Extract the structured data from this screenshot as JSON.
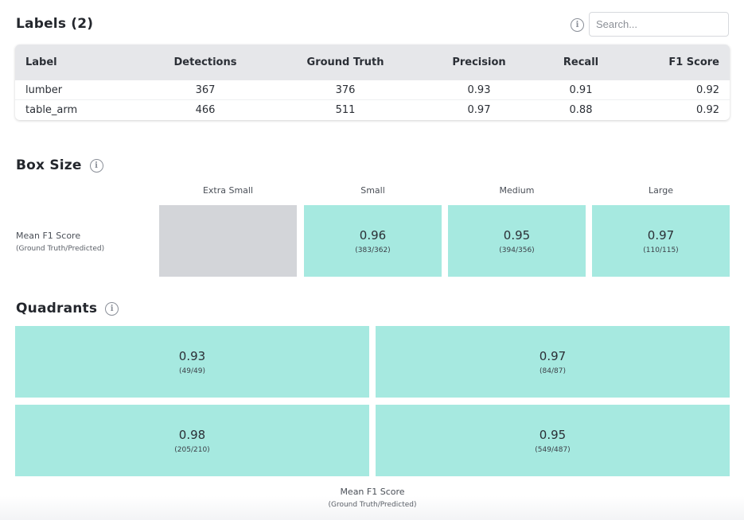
{
  "labels_section": {
    "title": "Labels (2)",
    "info_icon": "info-icon",
    "search": {
      "placeholder": "Search...",
      "value": ""
    },
    "columns": [
      "Label",
      "Detections",
      "Ground Truth",
      "Precision",
      "Recall",
      "F1 Score"
    ],
    "rows": [
      {
        "label": "lumber",
        "detections": "367",
        "ground_truth": "376",
        "precision": "0.93",
        "recall": "0.91",
        "f1": "0.92"
      },
      {
        "label": "table_arm",
        "detections": "466",
        "ground_truth": "511",
        "precision": "0.97",
        "recall": "0.88",
        "f1": "0.92"
      }
    ]
  },
  "box_size": {
    "title": "Box Size",
    "row_label": "Mean F1 Score",
    "row_sublabel": "(Ground Truth/Predicted)",
    "headers": [
      "Extra Small",
      "Small",
      "Medium",
      "Large"
    ],
    "tiles": [
      {
        "value": "",
        "counts": ""
      },
      {
        "value": "0.96",
        "counts": "(383/362)"
      },
      {
        "value": "0.95",
        "counts": "(394/356)"
      },
      {
        "value": "0.97",
        "counts": "(110/115)"
      }
    ]
  },
  "quadrants": {
    "title": "Quadrants",
    "tiles": [
      {
        "value": "0.93",
        "counts": "(49/49)"
      },
      {
        "value": "0.97",
        "counts": "(84/87)"
      },
      {
        "value": "0.98",
        "counts": "(205/210)"
      },
      {
        "value": "0.95",
        "counts": "(549/487)"
      }
    ],
    "caption": "Mean F1 Score",
    "caption_sub": "(Ground Truth/Predicted)"
  },
  "colors": {
    "tile_fill": "#a6e9e0",
    "tile_empty": "#d3d5d9",
    "header_bg": "#e6e7ea"
  }
}
